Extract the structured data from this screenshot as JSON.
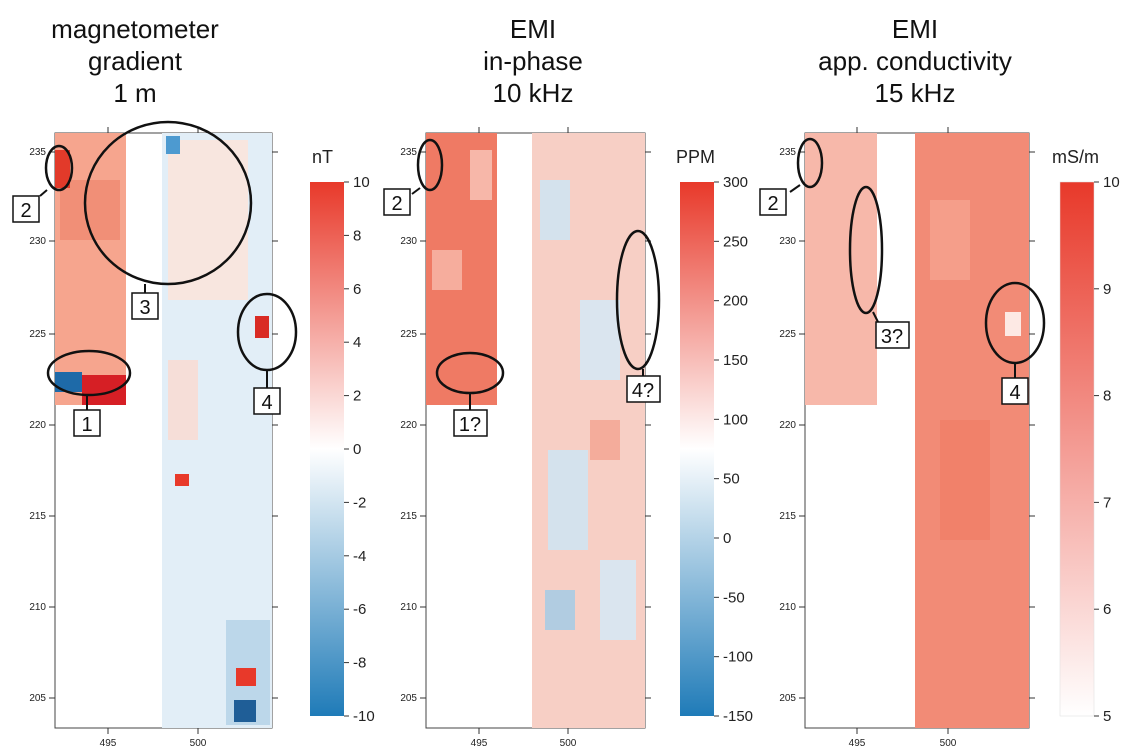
{
  "figure": {
    "panels": [
      {
        "title_lines": [
          "magnetometer",
          "gradient",
          "1 m"
        ],
        "unit": "nT",
        "colorbar_ticks": [
          "10",
          "8",
          "6",
          "4",
          "2",
          "0",
          "-2",
          "-4",
          "-6",
          "-8",
          "-10"
        ],
        "colorbar_values": [
          10,
          8,
          6,
          4,
          2,
          0,
          -2,
          -4,
          -6,
          -8,
          -10
        ]
      },
      {
        "title_lines": [
          "EMI",
          "in-phase",
          "10 kHz"
        ],
        "unit": "PPM",
        "colorbar_ticks": [
          "300",
          "250",
          "200",
          "150",
          "100",
          "50",
          "0",
          "-50",
          "-100",
          "-150"
        ],
        "colorbar_values": [
          300,
          250,
          200,
          150,
          100,
          50,
          0,
          -50,
          -100,
          -150
        ]
      },
      {
        "title_lines": [
          "EMI",
          "app. conductivity",
          "15 kHz"
        ],
        "unit": "mS/m",
        "colorbar_ticks": [
          "10",
          "9",
          "8",
          "7",
          "6",
          "5"
        ],
        "colorbar_values": [
          10,
          9,
          8,
          7,
          6,
          5
        ]
      }
    ],
    "annotations": [
      [
        "2",
        "3",
        "1",
        "4"
      ],
      [
        "2",
        "1?",
        "4?"
      ],
      [
        "2",
        "3?",
        "4"
      ]
    ]
  },
  "chart_data": [
    {
      "type": "heatmap",
      "title": "magnetometer gradient 1 m",
      "xlabel": "",
      "ylabel": "",
      "x_ticks": [
        "495",
        "500"
      ],
      "y_ticks": [
        "235",
        "230",
        "225",
        "220",
        "215",
        "210",
        "205"
      ],
      "xlim": [
        492,
        504
      ],
      "ylim": [
        204,
        236.5
      ],
      "colorbar": {
        "label": "nT",
        "range": [
          -10,
          10
        ],
        "colors": [
          "#1f7bb8",
          "#ffffff",
          "#e8392a"
        ]
      },
      "areas": [
        {
          "x": [
            492,
            496
          ],
          "y": [
            221,
            236
          ],
          "description_value": "positive 2-6 nT"
        },
        {
          "x": [
            498,
            504
          ],
          "y": [
            204,
            236
          ],
          "description_value": "near 0 nT"
        }
      ],
      "anomalies": [
        {
          "label": "1",
          "x": 494.5,
          "y": 223,
          "value": 10
        },
        {
          "label": "2",
          "x": 492.5,
          "y": 234.5,
          "value": 8
        },
        {
          "label": "3",
          "x": 498.5,
          "y": 233
        },
        {
          "label": "4",
          "x": 503.7,
          "y": 225,
          "value": 9
        }
      ]
    },
    {
      "type": "heatmap",
      "title": "EMI in-phase 10 kHz",
      "xlabel": "",
      "ylabel": "",
      "x_ticks": [
        "495",
        "500"
      ],
      "y_ticks": [
        "235",
        "230",
        "225",
        "220",
        "215",
        "210",
        "205"
      ],
      "xlim": [
        492,
        504
      ],
      "ylim": [
        204,
        236.5
      ],
      "colorbar": {
        "label": "PPM",
        "range": [
          -150,
          300
        ],
        "colors": [
          "#1f7bb8",
          "#ffffff",
          "#e8392a"
        ]
      },
      "areas": [
        {
          "x": [
            492,
            496
          ],
          "y": [
            221,
            236
          ],
          "description_value": "150-250 PPM"
        },
        {
          "x": [
            498,
            504
          ],
          "y": [
            204,
            236
          ],
          "description_value": "-50-150 PPM"
        }
      ],
      "anomalies": [
        {
          "label": "1?",
          "x": 494.5,
          "y": 223
        },
        {
          "label": "2",
          "x": 492.5,
          "y": 234.5
        },
        {
          "label": "4?",
          "x": 503.6,
          "y": 227.5
        }
      ]
    },
    {
      "type": "heatmap",
      "title": "EMI app. conductivity 15 kHz",
      "xlabel": "",
      "ylabel": "",
      "x_ticks": [
        "495",
        "500"
      ],
      "y_ticks": [
        "235",
        "230",
        "225",
        "220",
        "215",
        "210",
        "205"
      ],
      "xlim": [
        492,
        504
      ],
      "ylim": [
        204,
        236.5
      ],
      "colorbar": {
        "label": "mS/m",
        "range": [
          5,
          10
        ],
        "colors": [
          "#ffffff",
          "#e8392a"
        ]
      },
      "areas": [
        {
          "x": [
            492,
            496
          ],
          "y": [
            221,
            236
          ],
          "description_value": "6.5-7.5 mS/m"
        },
        {
          "x": [
            498,
            504
          ],
          "y": [
            204,
            236
          ],
          "description_value": "7-8 mS/m"
        }
      ],
      "anomalies": [
        {
          "label": "2",
          "x": 492.5,
          "y": 234.5
        },
        {
          "label": "3?",
          "x": 495.5,
          "y": 229.5
        },
        {
          "label": "4",
          "x": 503.6,
          "y": 225
        }
      ]
    }
  ]
}
